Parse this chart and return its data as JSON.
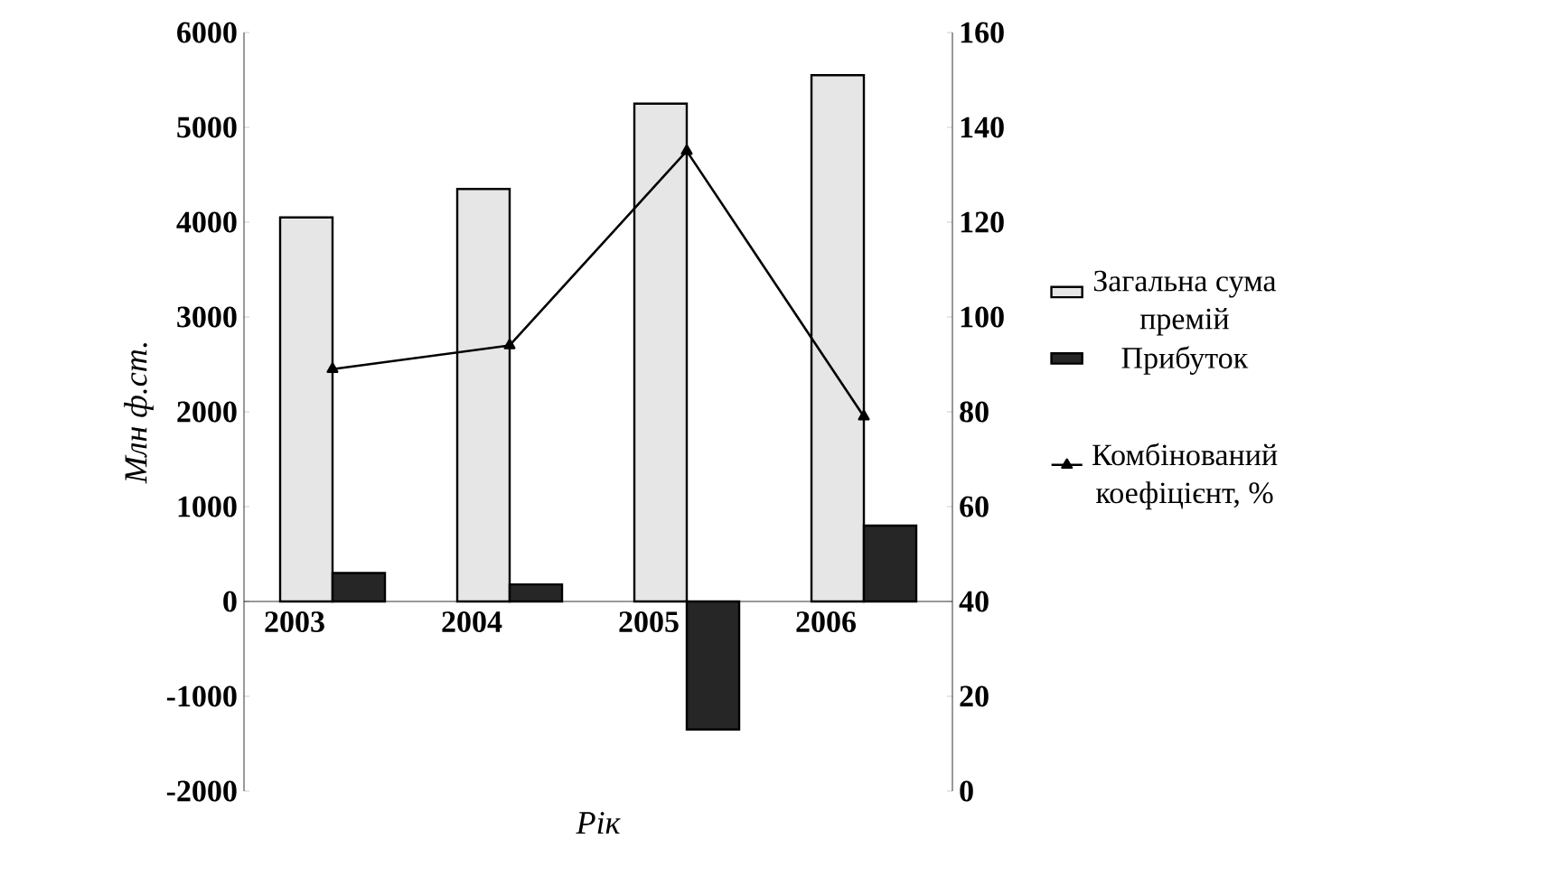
{
  "chart_data": {
    "type": "bar",
    "xlabel": "Рік",
    "ylabel": "Млн ф.ст.",
    "categories": [
      "2003",
      "2004",
      "2005",
      "2006"
    ],
    "series": [
      {
        "name": "Загальна сума премій",
        "color": "#e6e6e6",
        "values": [
          4050,
          4350,
          5250,
          5550
        ]
      },
      {
        "name": "Прибуток",
        "color": "#262626",
        "values": [
          300,
          180,
          -1350,
          800
        ]
      },
      {
        "name": "Комбінований коефіцієнт, %",
        "type": "line",
        "axis": "y2",
        "color": "#000000",
        "values": [
          89,
          94,
          135,
          79
        ]
      }
    ],
    "ylim": [
      -2000,
      6000
    ],
    "yticks": [
      -2000,
      -1000,
      0,
      1000,
      2000,
      3000,
      4000,
      5000,
      6000
    ],
    "y2lim": [
      0,
      160
    ],
    "y2ticks": [
      0,
      20,
      40,
      60,
      80,
      100,
      120,
      140,
      160
    ],
    "legend": "right",
    "marker": "triangle",
    "grid": false
  }
}
